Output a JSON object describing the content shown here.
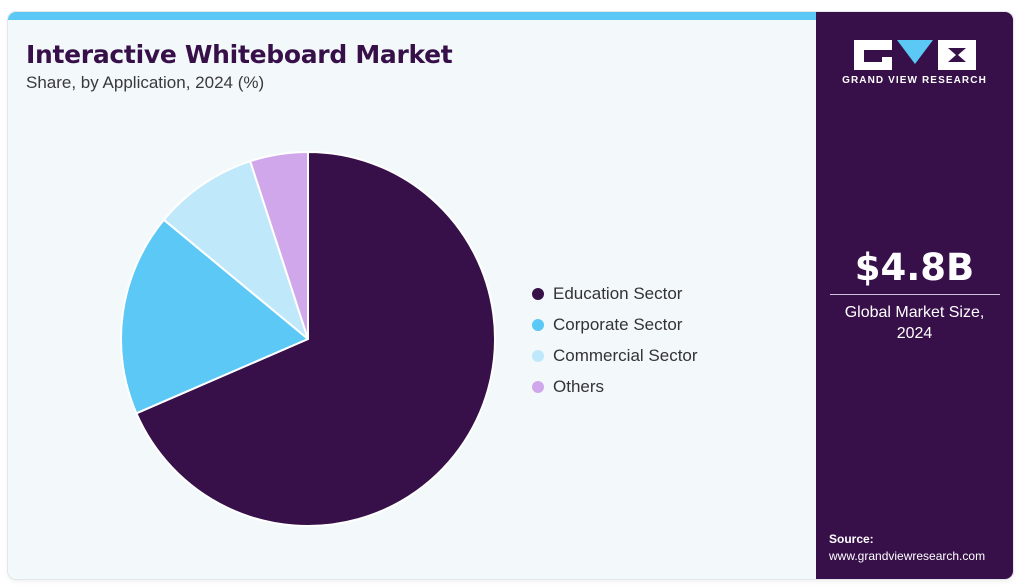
{
  "header": {
    "title": "Interactive Whiteboard Market",
    "subtitle": "Share, by Application, 2024 (%)"
  },
  "sidebar": {
    "brand": "GRAND VIEW RESEARCH",
    "market_value": "$4.8B",
    "market_label_line1": "Global Market Size,",
    "market_label_line2": "2024",
    "source_label": "Source:",
    "source_url": "www.grandviewresearch.com"
  },
  "colors": {
    "primary": "#37104a",
    "accent": "#5bc8f5",
    "background": "#f3f8fb"
  },
  "icons": {
    "logo": "gvr-logo"
  },
  "chart_data": {
    "type": "pie",
    "title": "Interactive Whiteboard Market",
    "categories": [
      "Education Sector",
      "Corporate Sector",
      "Commercial Sector",
      "Others"
    ],
    "values": [
      68.5,
      17.5,
      9.0,
      5.0
    ],
    "colors": [
      "#37104a",
      "#5bc8f5",
      "#bfe9fa",
      "#d1a7ec"
    ],
    "start_angle_deg": 0,
    "direction": "clockwise",
    "legend_position": "right"
  }
}
